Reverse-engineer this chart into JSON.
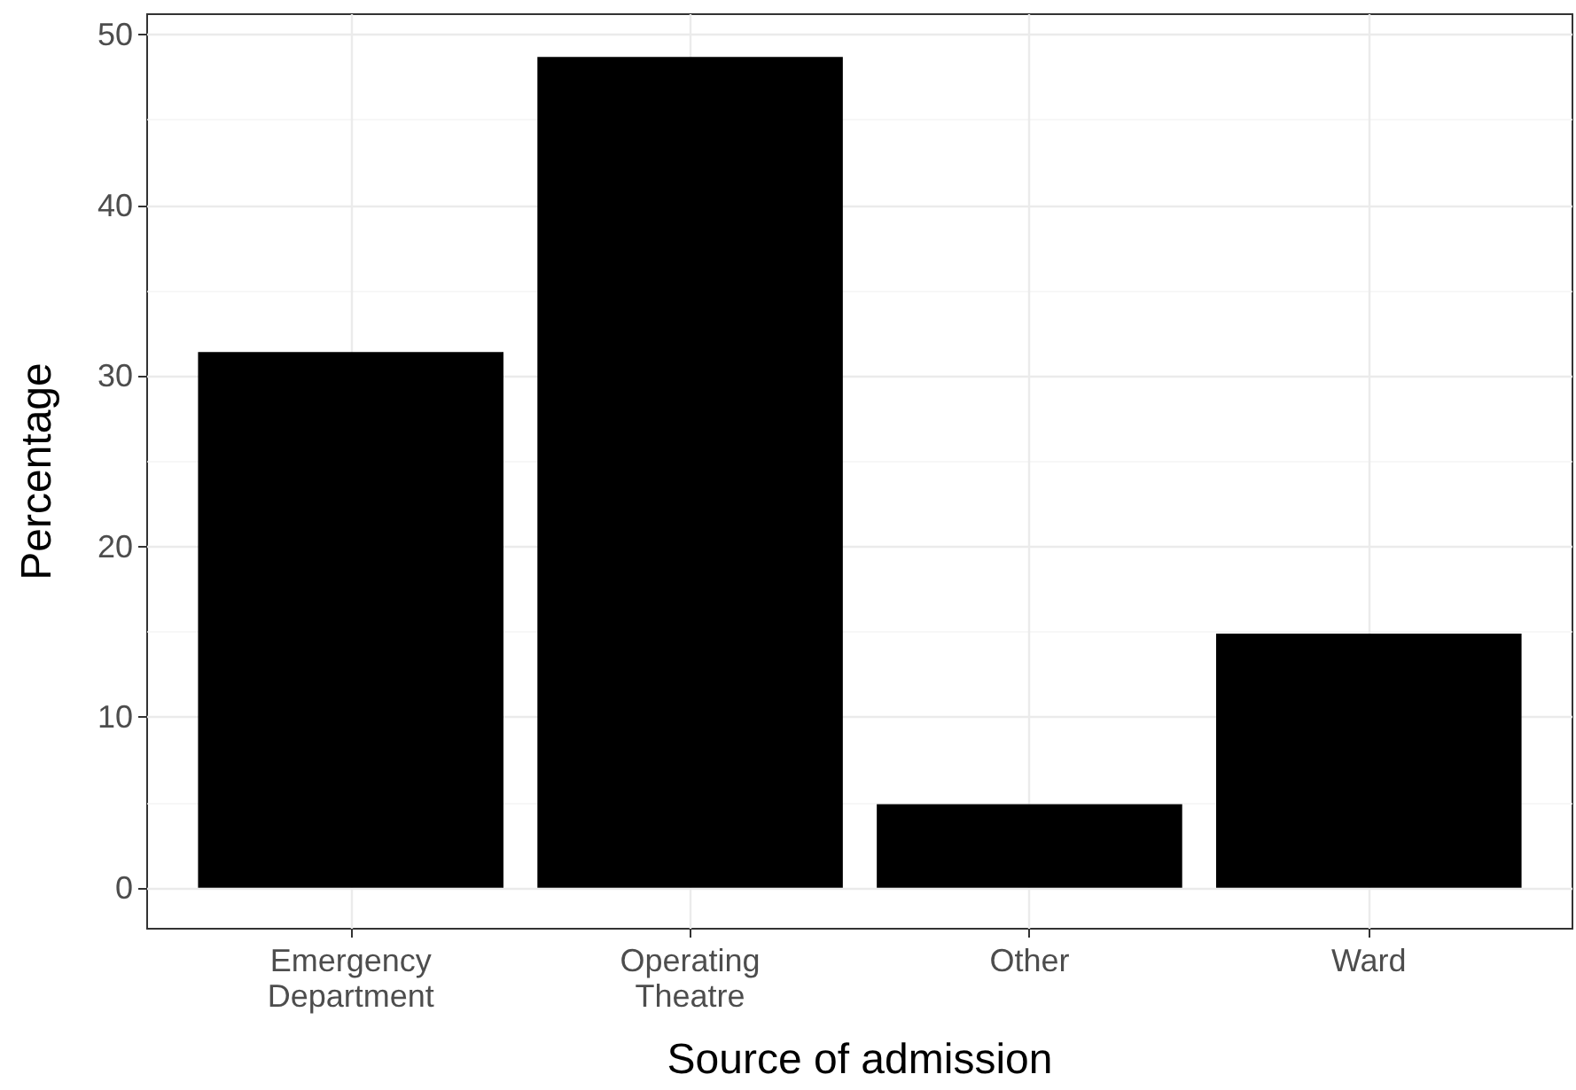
{
  "chart_data": {
    "type": "bar",
    "xlabel": "Source of admission",
    "ylabel": "Percentage",
    "categories": [
      "Emergency Department",
      "Operating Theatre",
      "Other",
      "Ward"
    ],
    "values": [
      31.4,
      48.7,
      4.9,
      14.9
    ],
    "color": "#000000",
    "ylim": [
      -2.4,
      51.2
    ],
    "yticks": [
      0,
      10,
      20,
      30,
      40,
      50
    ],
    "grid": true
  }
}
